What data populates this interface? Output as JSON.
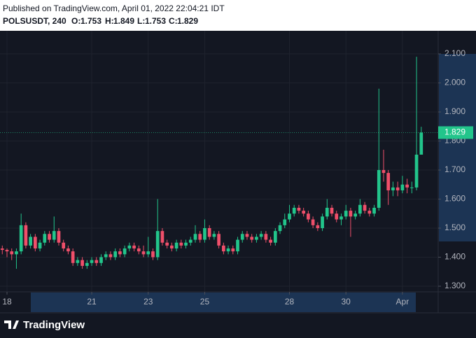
{
  "header": {
    "published": "Published on TradingView.com, April 01, 2022 22:04:21 IDT",
    "symbol": "POLSUSDT, 240",
    "open_label": "O:",
    "open": 1.753,
    "high_label": "H:",
    "high": 1.849,
    "low_label": "L:",
    "low": 1.753,
    "close_label": "C:",
    "close": 1.829
  },
  "footer": {
    "brand": "TradingView"
  },
  "chart_data": {
    "type": "candlestick",
    "up_color": "#22c58b",
    "down_color": "#ef4f6a",
    "grid": true,
    "x": [
      -4,
      0,
      4,
      8,
      12,
      16,
      20,
      24,
      28,
      32,
      36,
      40,
      44,
      48,
      52,
      56,
      60,
      64,
      68,
      72,
      76,
      80,
      84,
      88,
      92,
      96,
      100,
      104,
      108,
      112,
      116,
      120,
      124,
      128,
      132,
      136,
      140,
      144,
      148,
      152,
      156,
      160,
      164,
      168,
      172,
      176,
      180,
      184,
      188,
      192,
      196,
      200,
      204,
      208,
      212,
      216,
      220,
      224,
      228,
      232,
      236,
      240,
      244,
      248,
      252,
      256,
      260,
      264,
      268,
      272,
      276,
      280,
      284,
      288,
      292,
      296,
      300,
      304,
      308,
      312,
      316,
      320,
      324,
      328,
      332,
      336,
      340,
      344,
      348,
      352
    ],
    "xlim": [
      -5.95,
      366.4
    ],
    "xticks": [
      {
        "value": 0,
        "label": "18"
      },
      {
        "value": 72,
        "label": "21"
      },
      {
        "value": 120,
        "label": "23"
      },
      {
        "value": 168,
        "label": "25"
      },
      {
        "value": 240,
        "label": "28"
      },
      {
        "value": 288,
        "label": "30"
      },
      {
        "value": 336,
        "label": "Apr"
      }
    ],
    "ylim": [
      1.2807,
      2.1795
    ],
    "yticks": [
      {
        "value": 1.3,
        "label": "1.300"
      },
      {
        "value": 1.4,
        "label": "1.400"
      },
      {
        "value": 1.5,
        "label": "1.500"
      },
      {
        "value": 1.6,
        "label": "1.600"
      },
      {
        "value": 1.7,
        "label": "1.700"
      },
      {
        "value": 1.8,
        "label": "1.800"
      },
      {
        "value": 1.9,
        "label": "1.900"
      },
      {
        "value": 2.0,
        "label": "2.000"
      },
      {
        "value": 2.1,
        "label": "2.100"
      }
    ],
    "series": [
      {
        "open": [
          1.43,
          1.425,
          1.42,
          1.41,
          1.42,
          1.51,
          1.44,
          1.47,
          1.43,
          1.45,
          1.48,
          1.46,
          1.49,
          1.45,
          1.43,
          1.42,
          1.38,
          1.39,
          1.37,
          1.38,
          1.39,
          1.38,
          1.4,
          1.41,
          1.4,
          1.42,
          1.41,
          1.43,
          1.44,
          1.43,
          1.42,
          1.41,
          1.42,
          1.4,
          1.49,
          1.45,
          1.44,
          1.43,
          1.45,
          1.44,
          1.45,
          1.46,
          1.48,
          1.46,
          1.5,
          1.47,
          1.48,
          1.44,
          1.42,
          1.43,
          1.42,
          1.46,
          1.48,
          1.47,
          1.46,
          1.47,
          1.48,
          1.46,
          1.45,
          1.49,
          1.51,
          1.53,
          1.55,
          1.57,
          1.56,
          1.55,
          1.53,
          1.51,
          1.5,
          1.54,
          1.57,
          1.55,
          1.53,
          1.54,
          1.56,
          1.54,
          1.55,
          1.58,
          1.56,
          1.55,
          1.57,
          1.7,
          1.69,
          1.63,
          1.64,
          1.63,
          1.65,
          1.64,
          1.64,
          1.753
        ],
        "high": [
          1.44,
          1.43,
          1.43,
          1.43,
          1.55,
          1.52,
          1.48,
          1.48,
          1.46,
          1.49,
          1.49,
          1.54,
          1.5,
          1.46,
          1.44,
          1.43,
          1.4,
          1.4,
          1.39,
          1.4,
          1.4,
          1.41,
          1.42,
          1.42,
          1.43,
          1.43,
          1.44,
          1.45,
          1.45,
          1.44,
          1.44,
          1.47,
          1.43,
          1.6,
          1.5,
          1.46,
          1.45,
          1.46,
          1.46,
          1.46,
          1.47,
          1.51,
          1.49,
          1.53,
          1.51,
          1.49,
          1.49,
          1.45,
          1.44,
          1.44,
          1.47,
          1.49,
          1.49,
          1.48,
          1.48,
          1.49,
          1.49,
          1.47,
          1.5,
          1.52,
          1.55,
          1.58,
          1.58,
          1.58,
          1.57,
          1.56,
          1.54,
          1.52,
          1.55,
          1.6,
          1.58,
          1.56,
          1.55,
          1.58,
          1.57,
          1.56,
          1.6,
          1.59,
          1.57,
          1.58,
          1.98,
          1.77,
          1.7,
          1.66,
          1.66,
          1.68,
          1.67,
          1.66,
          2.09,
          1.849
        ],
        "low": [
          1.41,
          1.4,
          1.39,
          1.36,
          1.41,
          1.43,
          1.43,
          1.42,
          1.42,
          1.44,
          1.45,
          1.45,
          1.44,
          1.42,
          1.41,
          1.37,
          1.37,
          1.36,
          1.36,
          1.37,
          1.37,
          1.37,
          1.39,
          1.39,
          1.39,
          1.4,
          1.4,
          1.42,
          1.42,
          1.41,
          1.4,
          1.4,
          1.39,
          1.39,
          1.44,
          1.43,
          1.42,
          1.42,
          1.43,
          1.43,
          1.44,
          1.45,
          1.45,
          1.45,
          1.46,
          1.46,
          1.43,
          1.41,
          1.41,
          1.41,
          1.41,
          1.45,
          1.46,
          1.45,
          1.45,
          1.46,
          1.45,
          1.44,
          1.44,
          1.48,
          1.5,
          1.52,
          1.54,
          1.55,
          1.54,
          1.52,
          1.5,
          1.49,
          1.49,
          1.53,
          1.54,
          1.52,
          1.51,
          1.53,
          1.47,
          1.53,
          1.54,
          1.55,
          1.54,
          1.54,
          1.56,
          1.66,
          1.58,
          1.61,
          1.61,
          1.62,
          1.62,
          1.62,
          1.63,
          1.753
        ],
        "close": [
          1.425,
          1.42,
          1.41,
          1.42,
          1.51,
          1.44,
          1.47,
          1.43,
          1.45,
          1.48,
          1.46,
          1.49,
          1.45,
          1.43,
          1.42,
          1.38,
          1.39,
          1.37,
          1.38,
          1.39,
          1.38,
          1.4,
          1.41,
          1.4,
          1.42,
          1.41,
          1.43,
          1.44,
          1.43,
          1.42,
          1.41,
          1.42,
          1.4,
          1.49,
          1.45,
          1.44,
          1.43,
          1.45,
          1.44,
          1.45,
          1.46,
          1.48,
          1.46,
          1.5,
          1.47,
          1.48,
          1.44,
          1.42,
          1.43,
          1.42,
          1.46,
          1.48,
          1.47,
          1.46,
          1.47,
          1.48,
          1.46,
          1.45,
          1.49,
          1.51,
          1.53,
          1.55,
          1.57,
          1.56,
          1.55,
          1.53,
          1.51,
          1.5,
          1.54,
          1.57,
          1.55,
          1.53,
          1.54,
          1.56,
          1.54,
          1.55,
          1.58,
          1.56,
          1.55,
          1.57,
          1.7,
          1.69,
          1.63,
          1.64,
          1.63,
          1.65,
          1.64,
          1.64,
          1.753,
          1.829
        ]
      }
    ]
  }
}
